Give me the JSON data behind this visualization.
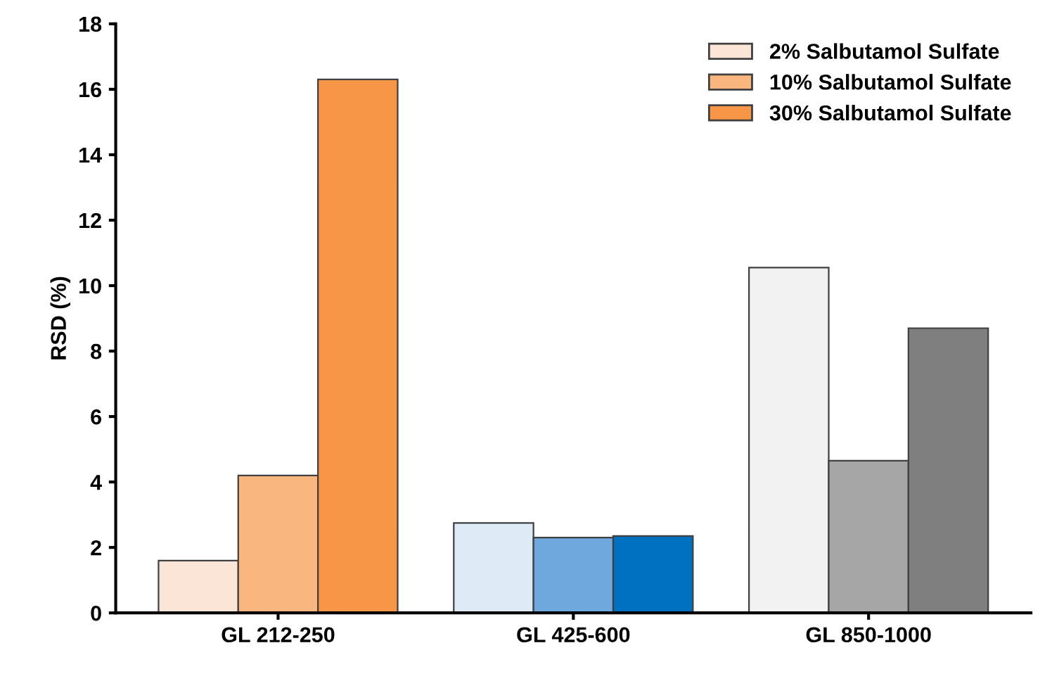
{
  "chart_data": {
    "type": "bar",
    "ylabel": "RSD (%)",
    "categories": [
      "GL 212-250",
      "GL 425-600",
      "GL 850-1000"
    ],
    "series": [
      {
        "name": "2% Salbutamol Sulfate",
        "color": "#fbe5d6",
        "colors": [
          "#fbe5d6",
          "#deebf7",
          "#f2f2f2"
        ],
        "values": [
          1.6,
          2.75,
          10.55
        ]
      },
      {
        "name": "10% Salbutamol Sulfate",
        "color": "#f9b67f",
        "colors": [
          "#f9b67f",
          "#6fa8dc",
          "#a6a6a6"
        ],
        "values": [
          4.2,
          2.3,
          4.65
        ]
      },
      {
        "name": "30% Salbutamol Sulfate",
        "color": "#f79646",
        "colors": [
          "#f79646",
          "#0070c0",
          "#7f7f7f"
        ],
        "values": [
          16.3,
          2.35,
          8.7
        ]
      }
    ],
    "ylim": [
      0,
      18
    ],
    "yticks": [
      0,
      2,
      4,
      6,
      8,
      10,
      12,
      14,
      16,
      18
    ],
    "grid": false,
    "legend": "top right"
  }
}
